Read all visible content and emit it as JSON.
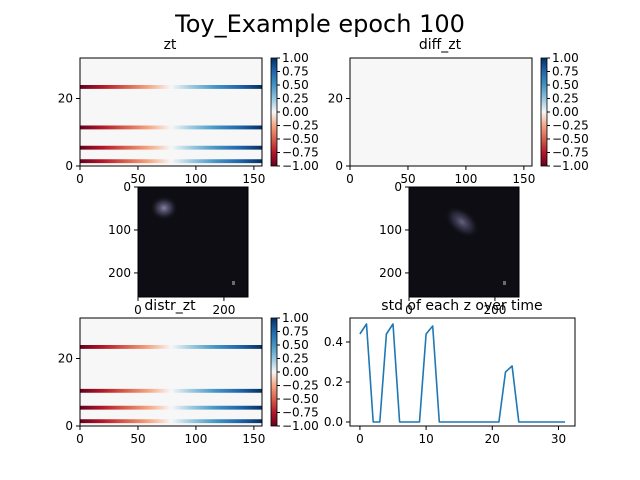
{
  "suptitle": "Toy_Example epoch 100",
  "colorbar_ticks": [
    "1.00",
    "0.75",
    "0.50",
    "0.25",
    "0.00",
    "−0.25",
    "−0.50",
    "−0.75",
    "−1.00"
  ],
  "chart_data": [
    {
      "id": "zt",
      "type": "heatmap",
      "title": "zt",
      "x_ticks": [
        "0",
        "50",
        "100",
        "150"
      ],
      "y_ticks": [
        "0",
        "20"
      ],
      "xlim": [
        0,
        157
      ],
      "ylim": [
        0,
        32
      ],
      "colormap": "RdBu",
      "clim": [
        -1,
        1
      ],
      "active_rows": [
        1,
        5,
        11,
        23
      ],
      "description": "Rows sweep from -1 (red, left) through 0 (white) to +1 (blue, right); other rows are 0."
    },
    {
      "id": "diff_zt",
      "type": "heatmap",
      "title": "diff_zt",
      "x_ticks": [
        "0",
        "50",
        "100",
        "150"
      ],
      "y_ticks": [
        "0",
        "20"
      ],
      "xlim": [
        0,
        157
      ],
      "ylim": [
        0,
        32
      ],
      "colormap": "RdBu",
      "clim": [
        -1,
        1
      ],
      "active_rows": []
    },
    {
      "id": "frame_left",
      "type": "heatmap",
      "title": "",
      "x_ticks": [
        "0",
        "200"
      ],
      "y_ticks": [
        "0",
        "100",
        "200"
      ],
      "colormap": "image"
    },
    {
      "id": "frame_right",
      "type": "heatmap",
      "title": "",
      "x_ticks": [
        "0",
        "200"
      ],
      "y_ticks": [
        "0",
        "100",
        "200"
      ],
      "colormap": "image"
    },
    {
      "id": "distr_zt",
      "type": "heatmap",
      "title": "distr_zt",
      "x_ticks": [
        "0",
        "50",
        "100",
        "150"
      ],
      "y_ticks": [
        "0",
        "20"
      ],
      "xlim": [
        0,
        157
      ],
      "ylim": [
        0,
        32
      ],
      "colormap": "RdBu",
      "clim": [
        -1,
        1
      ],
      "active_rows": [
        1,
        5,
        10,
        23
      ]
    },
    {
      "id": "std",
      "type": "line",
      "title": "std of each z over time",
      "x_ticks": [
        "0",
        "10",
        "20",
        "30"
      ],
      "y_ticks": [
        "0.0",
        "0.2",
        "0.4"
      ],
      "xlim": [
        -1.5,
        32.5
      ],
      "ylim": [
        -0.02,
        0.52
      ],
      "color": "#1f77b4",
      "x": [
        0,
        1,
        2,
        3,
        4,
        5,
        6,
        7,
        8,
        9,
        10,
        11,
        12,
        13,
        14,
        15,
        16,
        17,
        18,
        19,
        20,
        21,
        22,
        23,
        24,
        25,
        26,
        27,
        28,
        29,
        30,
        31
      ],
      "y": [
        0.44,
        0.49,
        0,
        0,
        0.44,
        0.49,
        0,
        0,
        0,
        0,
        0.44,
        0.48,
        0,
        0,
        0,
        0,
        0,
        0,
        0,
        0,
        0,
        0,
        0.25,
        0.28,
        0,
        0,
        0,
        0,
        0,
        0,
        0,
        0
      ]
    }
  ]
}
